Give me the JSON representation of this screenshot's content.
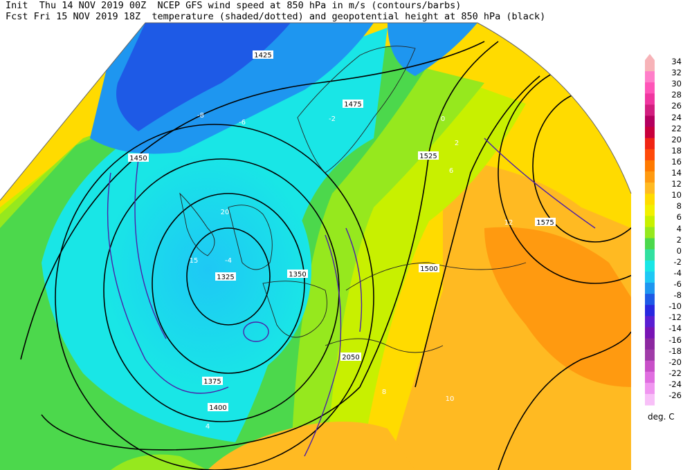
{
  "header": {
    "init_label": "Init",
    "init_time": "Thu 14 NOV 2019 00Z",
    "fcst_label": "Fcst",
    "fcst_time": "Fri 15 NOV 2019 18Z",
    "title_line1": "NCEP GFS wind speed at 850 hPa in m/s (contours/barbs)",
    "title_line2": "temperature (shaded/dotted) and geopotential height at 850 hPa (black)"
  },
  "legend": {
    "unit": "deg. C",
    "levels": [
      "34",
      "32",
      "30",
      "28",
      "26",
      "24",
      "22",
      "20",
      "18",
      "16",
      "14",
      "12",
      "10",
      "8",
      "6",
      "4",
      "2",
      "0",
      "-2",
      "-4",
      "-6",
      "-8",
      "-10",
      "-12",
      "-14",
      "-16",
      "-18",
      "-20",
      "-22",
      "-24",
      "-26"
    ],
    "colors": [
      "#f7b3b8",
      "#ff7ec9",
      "#ff55b8",
      "#f036a0",
      "#d21e7f",
      "#b4005f",
      "#c8003c",
      "#f02514",
      "#ff4a0a",
      "#ff7a00",
      "#ff9a10",
      "#ffba22",
      "#ffdb00",
      "#f2f000",
      "#c8f000",
      "#96e81e",
      "#4cd84c",
      "#32e0a0",
      "#19e6e6",
      "#1ec8f5",
      "#1e96f0",
      "#1e5ae6",
      "#2828e0",
      "#5a1ed2",
      "#7814b4",
      "#8c28a0",
      "#a03ca8",
      "#c850c8",
      "#e06ee0",
      "#f096f0",
      "#f8c0f8"
    ]
  },
  "map": {
    "height_labels": [
      "1325",
      "1350",
      "1375",
      "1400",
      "1425",
      "1450",
      "1475",
      "1500",
      "1525",
      "1575",
      "2050"
    ],
    "temp_labels": [
      "-8",
      "-6",
      "-4",
      "-2",
      "0",
      "2",
      "4",
      "6",
      "8",
      "10",
      "12"
    ],
    "wind_labels": [
      "15",
      "20"
    ]
  }
}
